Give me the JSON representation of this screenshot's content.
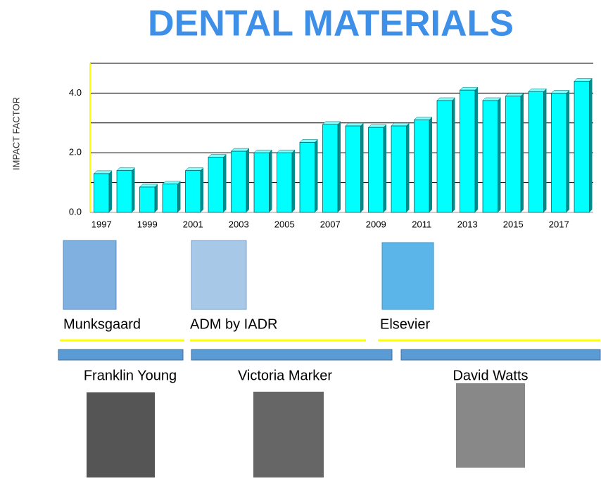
{
  "chart_data": {
    "type": "bar",
    "title": "DENTAL MATERIALS",
    "ylabel": "IMPACT FACTOR",
    "categories": [
      "1997",
      null,
      "1999",
      null,
      "2001",
      null,
      "2003",
      null,
      "2005",
      null,
      "2007",
      null,
      "2009",
      null,
      "2011",
      null,
      "2013",
      null,
      "2015",
      null,
      "2017",
      null
    ],
    "values": [
      1.3,
      1.4,
      0.85,
      0.95,
      1.4,
      1.85,
      2.05,
      2.0,
      2.0,
      2.35,
      2.95,
      2.9,
      2.85,
      2.9,
      3.1,
      3.75,
      4.1,
      3.75,
      3.9,
      4.05,
      4.0,
      4.4
    ],
    "color": "#00ffff",
    "ylim": [
      0,
      5
    ],
    "yticks": [
      {
        "value": 0,
        "label": "0.0"
      },
      {
        "value": 2,
        "label": "2.0"
      },
      {
        "value": 4,
        "label": "4.0"
      }
    ],
    "grid_lines": [
      1,
      2,
      3,
      4,
      5
    ],
    "grid": true
  },
  "publishers": [
    "Munksgaard",
    "ADM by IADR",
    "Elsevier"
  ],
  "editors": [
    "Franklin Young",
    "Victoria Marker",
    "David Watts"
  ]
}
